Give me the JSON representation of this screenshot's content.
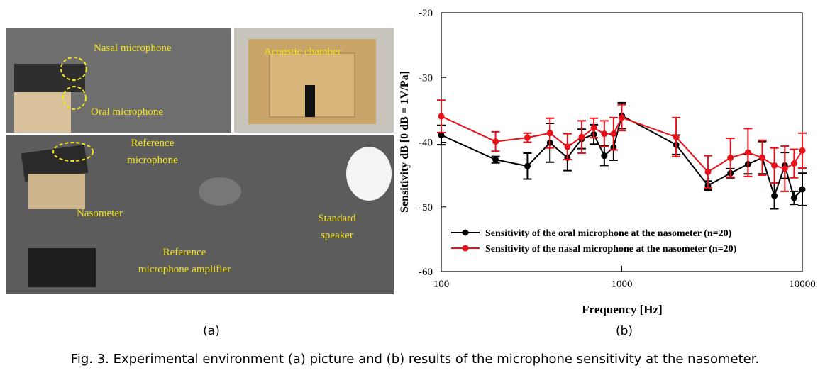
{
  "figure": {
    "photo_labels": [
      {
        "lines": [
          "Nasal microphone"
        ]
      },
      {
        "lines": [
          "Oral microphone"
        ]
      },
      {
        "lines": [
          "Acoustic chamber"
        ]
      },
      {
        "lines": [
          "Reference",
          "microphone"
        ]
      },
      {
        "lines": [
          "Nasometer"
        ]
      },
      {
        "lines": [
          "Standard",
          "speaker"
        ]
      },
      {
        "lines": [
          "Reference",
          "microphone amplifier"
        ]
      }
    ],
    "panel_labels": [
      "(a)",
      "(b)"
    ],
    "caption": "Fig. 3. Experimental environment (a) picture and (b) results of the microphone sensitivity at the nasometer."
  },
  "chart_data": {
    "type": "line",
    "x_label": "Frequency [Hz]",
    "y_label": "Sensitivity dB [0 dB = 1V/Pa]",
    "x": [
      100,
      200,
      300,
      400,
      500,
      600,
      700,
      800,
      900,
      1000,
      2000,
      3000,
      4000,
      5000,
      6000,
      7000,
      8000,
      9000,
      10000
    ],
    "x_log": true,
    "xlim": [
      100,
      10000
    ],
    "xticks": [
      100,
      1000,
      10000
    ],
    "ylim": [
      -60,
      -20
    ],
    "yticks": [
      -60,
      -50,
      -40,
      -30,
      -20
    ],
    "legend_position": "lower-left",
    "series": [
      {
        "name": "Sensitivity of the oral microphone at the nasometer (n=20)",
        "color": "#000000",
        "values": [
          -38.9,
          -42.7,
          -43.7,
          -40.1,
          -42.4,
          -39.5,
          -38.8,
          -42.1,
          -40.8,
          -35.9,
          -40.4,
          -46.7,
          -44.8,
          -43.4,
          -42.4,
          -48.3,
          -43.6,
          -48.6,
          -47.3
        ],
        "errors": [
          1.5,
          0.5,
          2,
          3,
          2,
          1.5,
          1.5,
          1.5,
          2,
          2,
          1.5,
          0.7,
          0.7,
          1.5,
          2.5,
          2,
          2,
          1,
          2.5
        ]
      },
      {
        "name": "Sensitivity of the nasal microphone at the nasometer (n=20)",
        "color": "#e8121b",
        "values": [
          -36,
          -39.9,
          -39.3,
          -38.6,
          -40.7,
          -39.2,
          -37.8,
          -38.7,
          -38.7,
          -36.2,
          -39.2,
          -44.6,
          -42.4,
          -41.6,
          -42.4,
          -43.6,
          -44.1,
          -43.3,
          -41.3
        ],
        "errors": [
          2.5,
          1.5,
          0.7,
          2.3,
          2,
          2.5,
          1.5,
          2,
          2.5,
          2,
          3,
          2.5,
          3,
          3.7,
          2.7,
          2.7,
          3.5,
          2.2,
          2.7
        ]
      }
    ]
  }
}
